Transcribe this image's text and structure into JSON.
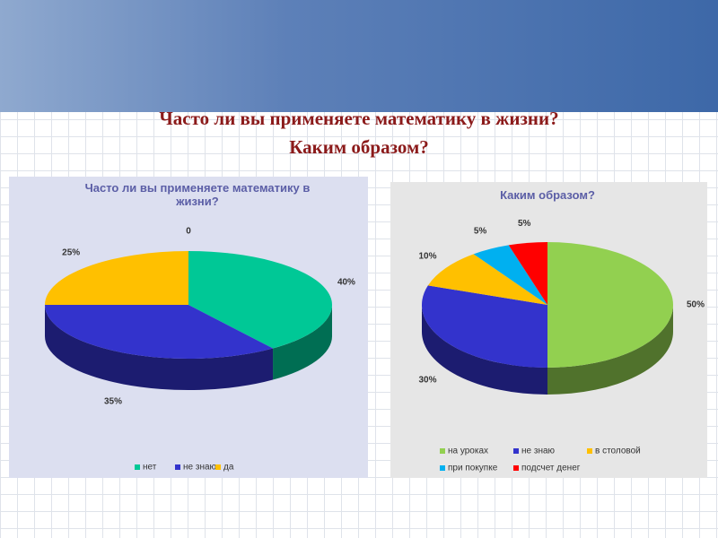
{
  "slide_title": [
    "Часто ли вы применяете математику в жизни?",
    "Каким образом?"
  ],
  "chart_data": [
    {
      "type": "pie3d",
      "title": "Часто ли вы применяете математику в жизни?",
      "categories": [
        null,
        "нет",
        "не знаю",
        "да"
      ],
      "values": [
        0,
        40,
        35,
        25
      ],
      "value_labels": [
        "0",
        "40%",
        "35%",
        "25%"
      ],
      "colors": [
        null,
        "#00c896",
        "#3333cc",
        "#ffc000"
      ]
    },
    {
      "type": "pie3d",
      "title": "Каким образом?",
      "categories": [
        "на уроках",
        "не знаю",
        "в столовой",
        "при покупке",
        "подсчет денег"
      ],
      "values": [
        50,
        30,
        10,
        5,
        5
      ],
      "value_labels": [
        "50%",
        "30%",
        "10%",
        "5%",
        "5%"
      ],
      "colors": [
        "#92d050",
        "#3333cc",
        "#ffc000",
        "#00b0f0",
        "#ff0000"
      ]
    }
  ]
}
